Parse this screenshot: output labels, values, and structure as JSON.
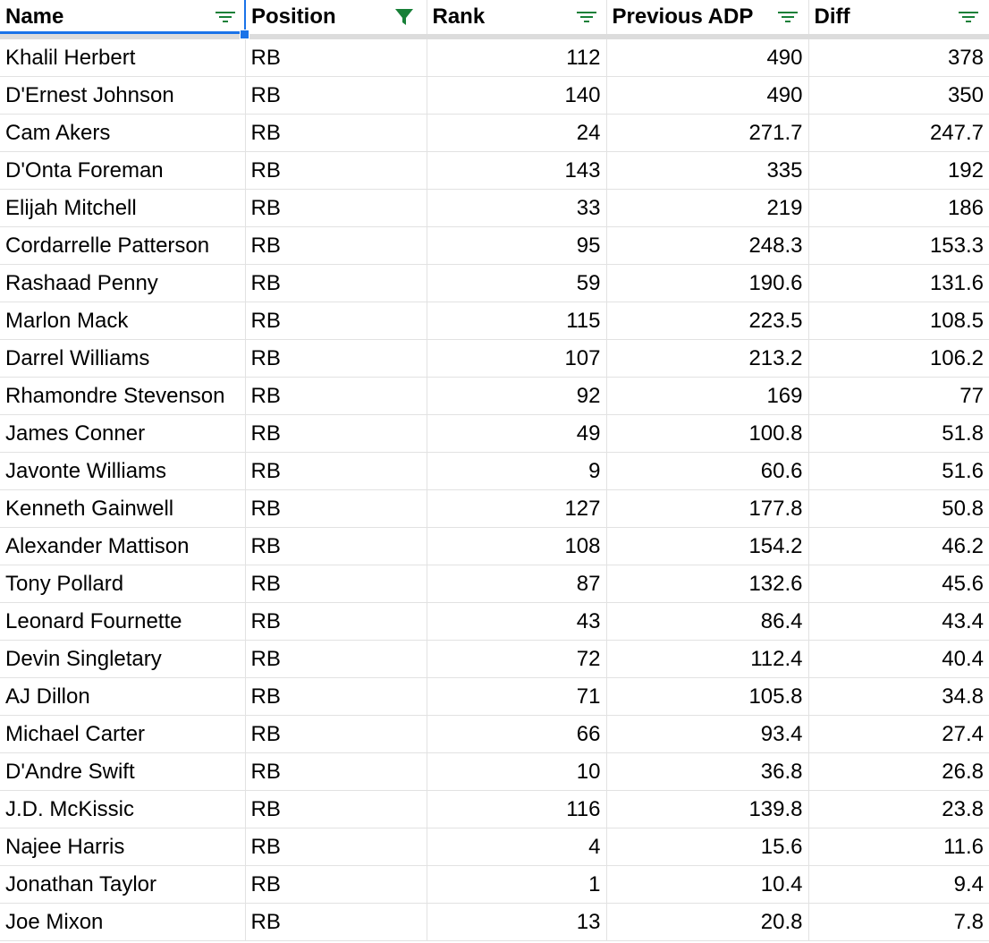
{
  "columns": [
    {
      "label": "Name",
      "filter": "lines",
      "key": "name"
    },
    {
      "label": "Position",
      "filter": "funnel",
      "key": "position"
    },
    {
      "label": "Rank",
      "filter": "lines",
      "key": "rank"
    },
    {
      "label": "Previous ADP",
      "filter": "lines",
      "key": "prev"
    },
    {
      "label": "Diff",
      "filter": "lines",
      "key": "diff"
    }
  ],
  "colors": {
    "filter_icon": "#188038",
    "selection": "#1a73e8",
    "gridline": "#e2e2e2",
    "header_separator": "#dcdcdc"
  },
  "rows": [
    {
      "name": "Khalil Herbert",
      "position": "RB",
      "rank": "112",
      "prev": "490",
      "diff": "378"
    },
    {
      "name": "D'Ernest Johnson",
      "position": "RB",
      "rank": "140",
      "prev": "490",
      "diff": "350"
    },
    {
      "name": "Cam Akers",
      "position": "RB",
      "rank": "24",
      "prev": "271.7",
      "diff": "247.7"
    },
    {
      "name": "D'Onta Foreman",
      "position": "RB",
      "rank": "143",
      "prev": "335",
      "diff": "192"
    },
    {
      "name": "Elijah Mitchell",
      "position": "RB",
      "rank": "33",
      "prev": "219",
      "diff": "186"
    },
    {
      "name": "Cordarrelle Patterson",
      "position": "RB",
      "rank": "95",
      "prev": "248.3",
      "diff": "153.3"
    },
    {
      "name": "Rashaad Penny",
      "position": "RB",
      "rank": "59",
      "prev": "190.6",
      "diff": "131.6"
    },
    {
      "name": "Marlon Mack",
      "position": "RB",
      "rank": "115",
      "prev": "223.5",
      "diff": "108.5"
    },
    {
      "name": "Darrel Williams",
      "position": "RB",
      "rank": "107",
      "prev": "213.2",
      "diff": "106.2"
    },
    {
      "name": "Rhamondre Stevenson",
      "position": "RB",
      "rank": "92",
      "prev": "169",
      "diff": "77"
    },
    {
      "name": "James Conner",
      "position": "RB",
      "rank": "49",
      "prev": "100.8",
      "diff": "51.8"
    },
    {
      "name": "Javonte Williams",
      "position": "RB",
      "rank": "9",
      "prev": "60.6",
      "diff": "51.6"
    },
    {
      "name": "Kenneth Gainwell",
      "position": "RB",
      "rank": "127",
      "prev": "177.8",
      "diff": "50.8"
    },
    {
      "name": "Alexander Mattison",
      "position": "RB",
      "rank": "108",
      "prev": "154.2",
      "diff": "46.2"
    },
    {
      "name": "Tony Pollard",
      "position": "RB",
      "rank": "87",
      "prev": "132.6",
      "diff": "45.6"
    },
    {
      "name": "Leonard Fournette",
      "position": "RB",
      "rank": "43",
      "prev": "86.4",
      "diff": "43.4"
    },
    {
      "name": "Devin Singletary",
      "position": "RB",
      "rank": "72",
      "prev": "112.4",
      "diff": "40.4"
    },
    {
      "name": "AJ Dillon",
      "position": "RB",
      "rank": "71",
      "prev": "105.8",
      "diff": "34.8"
    },
    {
      "name": "Michael Carter",
      "position": "RB",
      "rank": "66",
      "prev": "93.4",
      "diff": "27.4"
    },
    {
      "name": "D'Andre Swift",
      "position": "RB",
      "rank": "10",
      "prev": "36.8",
      "diff": "26.8"
    },
    {
      "name": "J.D. McKissic",
      "position": "RB",
      "rank": "116",
      "prev": "139.8",
      "diff": "23.8"
    },
    {
      "name": "Najee Harris",
      "position": "RB",
      "rank": "4",
      "prev": "15.6",
      "diff": "11.6"
    },
    {
      "name": "Jonathan Taylor",
      "position": "RB",
      "rank": "1",
      "prev": "10.4",
      "diff": "9.4"
    },
    {
      "name": "Joe Mixon",
      "position": "RB",
      "rank": "13",
      "prev": "20.8",
      "diff": "7.8"
    }
  ]
}
